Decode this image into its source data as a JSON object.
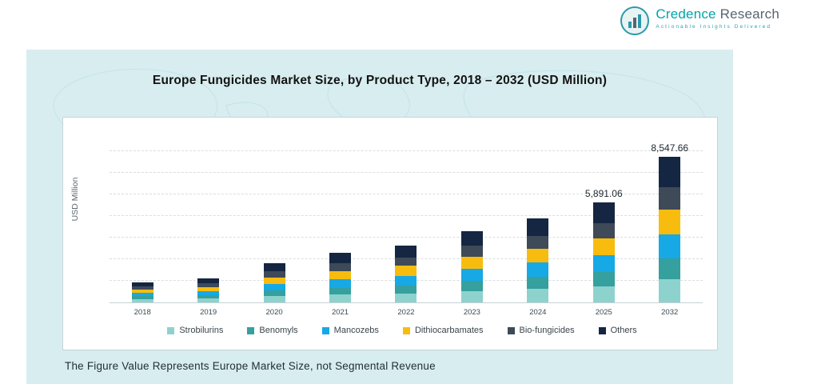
{
  "header": {
    "brand_primary": "Credence",
    "brand_secondary": "Research",
    "tagline": "Actionable Insights Delivered",
    "logo_icon": "bar-chart-logo-icon"
  },
  "panel": {
    "footnote": "The Figure Value Represents Europe Market Size, not Segmental Revenue"
  },
  "chart_data": {
    "type": "bar",
    "stacked": true,
    "title": "Europe Fungicides Market Size, by Product Type, 2018 – 2032 (USD Million)",
    "xlabel": "",
    "ylabel": "USD Million",
    "ylim": [
      0,
      9000
    ],
    "grid": "dashed-horizontal",
    "legend_position": "bottom",
    "categories": [
      "2018",
      "2019",
      "2020",
      "2021",
      "2022",
      "2023",
      "2024",
      "2025",
      "2032"
    ],
    "series": [
      {
        "name": "Strobilurins",
        "color": "#8ed2ce",
        "values": [
          192,
          224,
          368,
          464,
          536,
          672,
          792,
          942.6,
          1367.6
        ]
      },
      {
        "name": "Benomyls",
        "color": "#35a09e",
        "values": [
          168,
          196,
          322,
          406,
          469,
          588,
          693,
          824.7,
          1196.7
        ]
      },
      {
        "name": "Mancozebs",
        "color": "#17a8e6",
        "values": [
          204,
          238,
          391,
          493,
          570,
          714,
          842,
          1001.5,
          1453.1
        ]
      },
      {
        "name": "Dithiocarbamates",
        "color": "#f8bc0f",
        "values": [
          204,
          238,
          391,
          493,
          570,
          714,
          841,
          1001.5,
          1453.1
        ]
      },
      {
        "name": "Bio-fungicides",
        "color": "#3e4a57",
        "values": [
          180,
          210,
          345,
          435,
          502,
          630,
          743,
          883.7,
          1282.1
        ]
      },
      {
        "name": "Others",
        "color": "#152642",
        "values": [
          252,
          294,
          483,
          609,
          703,
          882,
          1039,
          1237.1,
          1795.2
        ]
      }
    ],
    "annotations": [
      {
        "category": "2025",
        "label": "5,891.06"
      },
      {
        "category": "2032",
        "label": "8,547.66"
      }
    ]
  }
}
